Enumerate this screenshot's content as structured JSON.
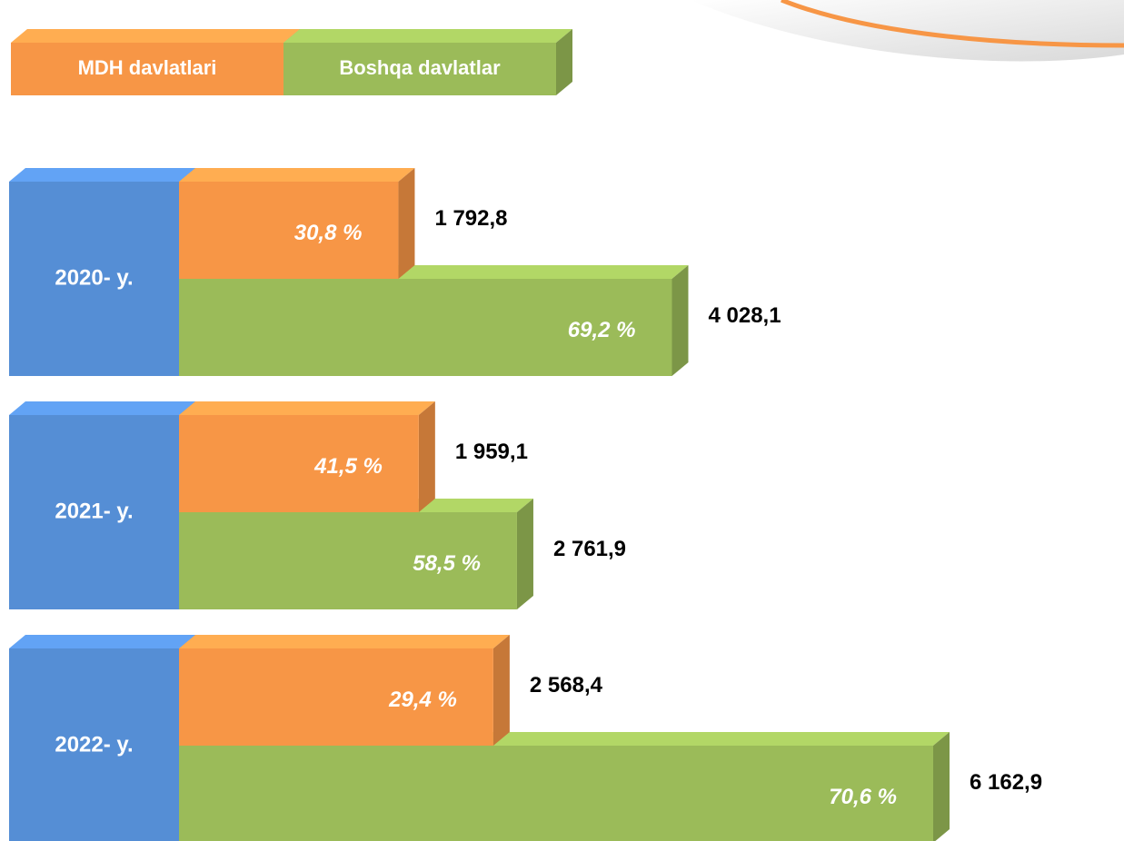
{
  "chart_data": {
    "type": "bar",
    "orientation": "horizontal",
    "categories": [
      "2020- y.",
      "2021- y.",
      "2022- y."
    ],
    "category_color": "#558ed5",
    "series": [
      {
        "name": "MDH davlatlari",
        "color": "#f79646",
        "values": [
          1792.8,
          1959.1,
          2568.4
        ],
        "value_labels": [
          "1 792,8",
          "1 959,1",
          "2 568,4"
        ],
        "shares": [
          30.8,
          41.5,
          29.4
        ],
        "share_labels": [
          "30,8 %",
          "41,5 %",
          "29,4 %"
        ]
      },
      {
        "name": "Boshqa davlatlar",
        "color": "#9bbb59",
        "values": [
          4028.1,
          2761.9,
          6162.9
        ],
        "value_labels": [
          "4 028,1",
          "2 761,9",
          "6 162,9"
        ],
        "shares": [
          69.2,
          58.5,
          70.6
        ],
        "share_labels": [
          "69,2 %",
          "58,5 %",
          "70,6 %"
        ]
      }
    ]
  }
}
